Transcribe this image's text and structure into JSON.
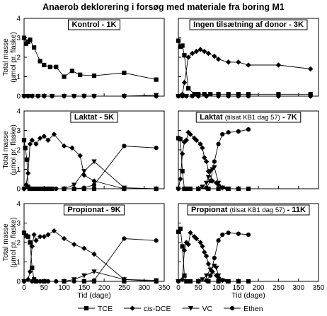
{
  "figure": {
    "title": "Anaerob deklorering i forsøg med materiale fra boring M1",
    "ylabel_line1": "Total masse",
    "ylabel_line2": "(µmol pr. flaske)",
    "xlabel": "Tid (dage)",
    "legend": [
      {
        "key": "TCE",
        "label": "TCE",
        "marker": "square"
      },
      {
        "key": "DCE",
        "label_prefix": "cis",
        "label": "-DCE",
        "marker": "diamond"
      },
      {
        "key": "VC",
        "label": "VC",
        "marker": "triangle-down"
      },
      {
        "key": "Ethen",
        "label": "Ethen",
        "marker": "circle"
      }
    ]
  },
  "chart_data": [
    {
      "type": "line",
      "title": "Kontrol - 1K",
      "xlim": [
        0,
        350
      ],
      "ylim": [
        0,
        4
      ],
      "xticks": [
        0,
        50,
        100,
        150,
        200,
        250,
        300,
        350
      ],
      "yticks": [
        0,
        1,
        2,
        3,
        4
      ],
      "series": [
        {
          "name": "TCE",
          "marker": "square",
          "x": [
            0,
            5,
            10,
            15,
            25,
            40,
            50,
            65,
            80,
            100,
            120,
            140,
            175,
            250,
            330
          ],
          "y": [
            3.0,
            2.7,
            2.8,
            2.9,
            2.5,
            1.8,
            1.6,
            1.5,
            1.5,
            1.0,
            1.3,
            1.1,
            1.05,
            1.2,
            0.85
          ]
        },
        {
          "name": "cis-DCE",
          "marker": "diamond",
          "x": [
            0,
            10,
            20,
            35,
            50,
            70,
            100,
            125,
            150,
            175,
            250,
            330
          ],
          "y": [
            0,
            0,
            0,
            0,
            0,
            0,
            0,
            0,
            0,
            0,
            0,
            0
          ]
        },
        {
          "name": "VC",
          "marker": "triangle-down",
          "x": [
            0,
            10,
            20,
            35,
            50,
            70,
            100,
            125,
            150,
            175,
            250,
            330
          ],
          "y": [
            0,
            0,
            0,
            0,
            0,
            0,
            0,
            0,
            0,
            0,
            0,
            0.05
          ]
        },
        {
          "name": "Ethen",
          "marker": "circle",
          "x": [
            0,
            10,
            20,
            35,
            50,
            70,
            100,
            125,
            150,
            175,
            250,
            330
          ],
          "y": [
            0,
            0,
            0,
            0,
            0,
            0,
            0,
            0,
            0,
            0,
            0,
            0
          ]
        }
      ]
    },
    {
      "type": "line",
      "title": "Ingen tilsætning af donor - 3K",
      "xlim": [
        0,
        350
      ],
      "ylim": [
        0,
        4
      ],
      "xticks": [
        0,
        50,
        100,
        150,
        200,
        250,
        300,
        350
      ],
      "yticks": [
        0,
        1,
        2,
        3,
        4
      ],
      "series": [
        {
          "name": "TCE",
          "marker": "square",
          "x": [
            0,
            5,
            10,
            15,
            25,
            40,
            50,
            65,
            80,
            100,
            125,
            150,
            175,
            250,
            330
          ],
          "y": [
            2.85,
            2.55,
            2.6,
            2.1,
            0.4,
            0.1,
            0.1,
            0.1,
            0.1,
            0.1,
            0.1,
            0.1,
            0.1,
            0.1,
            0.1
          ]
        },
        {
          "name": "cis-DCE",
          "marker": "diamond",
          "x": [
            0,
            10,
            15,
            25,
            35,
            45,
            55,
            65,
            75,
            90,
            100,
            125,
            150,
            175,
            250,
            330
          ],
          "y": [
            0,
            0.1,
            0.7,
            2.0,
            2.2,
            2.3,
            2.4,
            2.3,
            2.2,
            2.05,
            1.9,
            1.75,
            1.75,
            1.6,
            1.6,
            1.4
          ]
        },
        {
          "name": "VC",
          "marker": "triangle-down",
          "x": [
            0,
            10,
            20,
            35,
            50,
            70,
            100,
            125,
            150,
            175,
            250,
            330
          ],
          "y": [
            0,
            0,
            0,
            0,
            0,
            0,
            0,
            0,
            0,
            0,
            0,
            0
          ]
        },
        {
          "name": "Ethen",
          "marker": "circle",
          "x": [
            0,
            10,
            20,
            35,
            50,
            70,
            100,
            125,
            150,
            175,
            250,
            330
          ],
          "y": [
            0,
            0,
            0,
            0,
            0,
            0,
            0,
            0,
            0,
            0,
            0,
            0
          ]
        }
      ]
    },
    {
      "type": "line",
      "title": "Laktat - 5K",
      "xlim": [
        0,
        350
      ],
      "ylim": [
        0,
        4
      ],
      "xticks": [
        0,
        50,
        100,
        150,
        200,
        250,
        300,
        350
      ],
      "yticks": [
        0,
        1,
        2,
        3,
        4
      ],
      "series": [
        {
          "name": "TCE",
          "marker": "square",
          "x": [
            0,
            3,
            7,
            10,
            14,
            20,
            30,
            40,
            50,
            60,
            70,
            100,
            125,
            150,
            175,
            250,
            330
          ],
          "y": [
            2.5,
            2.1,
            1.5,
            0.1,
            0,
            0,
            0,
            0,
            0,
            0,
            0,
            0,
            0,
            0,
            0,
            0,
            0
          ]
        },
        {
          "name": "cis-DCE",
          "marker": "diamond",
          "x": [
            0,
            5,
            10,
            15,
            20,
            30,
            40,
            50,
            60,
            75,
            100,
            120,
            140,
            150,
            175,
            250,
            330
          ],
          "y": [
            0,
            0.2,
            0.8,
            2.3,
            2.5,
            2.3,
            2.6,
            2.7,
            2.5,
            2.8,
            2.2,
            2.1,
            1.7,
            0.7,
            0.4,
            0,
            0
          ]
        },
        {
          "name": "VC",
          "marker": "triangle-down",
          "x": [
            0,
            50,
            100,
            125,
            150,
            175,
            250,
            330
          ],
          "y": [
            0,
            0,
            0,
            0.2,
            0.9,
            1.4,
            0.05,
            0
          ]
        },
        {
          "name": "Ethen",
          "marker": "circle",
          "x": [
            0,
            20,
            40,
            60,
            80,
            100,
            125,
            150,
            175,
            250,
            330
          ],
          "y": [
            0,
            0,
            0,
            0,
            0,
            0,
            0,
            0.05,
            0.2,
            2.2,
            2.1
          ]
        }
      ]
    },
    {
      "type": "line",
      "title": "Laktat (tilsat KB1 dag 57) - 7K",
      "xlim": [
        0,
        350
      ],
      "ylim": [
        0,
        4
      ],
      "xticks": [
        0,
        50,
        100,
        150,
        200,
        250,
        300,
        350
      ],
      "yticks": [
        0,
        1,
        2,
        3,
        4
      ],
      "series": [
        {
          "name": "TCE",
          "marker": "square",
          "x": [
            0,
            5,
            10,
            15,
            20,
            30,
            50,
            75,
            100,
            125,
            150,
            175
          ],
          "y": [
            2.6,
            2.55,
            0.9,
            0,
            0,
            0,
            0,
            0,
            0,
            0,
            0,
            0
          ]
        },
        {
          "name": "cis-DCE",
          "marker": "diamond",
          "x": [
            0,
            5,
            10,
            15,
            20,
            25,
            30,
            40,
            45,
            55,
            60,
            65,
            70,
            75,
            85,
            95,
            100,
            110
          ],
          "y": [
            0,
            0.5,
            1.8,
            2.4,
            2.5,
            2.9,
            2.8,
            2.6,
            2.5,
            2.3,
            2.1,
            1.6,
            1.4,
            0.9,
            0.4,
            0.3,
            0.2,
            0.05
          ]
        },
        {
          "name": "VC",
          "marker": "triangle-down",
          "x": [
            0,
            50,
            60,
            70,
            75,
            80,
            85,
            90,
            100,
            110,
            120
          ],
          "y": [
            0,
            0,
            0.1,
            0.3,
            0.6,
            0.9,
            1.0,
            1.1,
            0.3,
            0.05,
            0
          ]
        },
        {
          "name": "Ethen",
          "marker": "circle",
          "x": [
            0,
            50,
            70,
            80,
            90,
            100,
            110,
            125,
            150,
            175
          ],
          "y": [
            0,
            0,
            0.05,
            0.4,
            1.4,
            2.3,
            2.8,
            2.9,
            2.95,
            3.05
          ]
        }
      ]
    },
    {
      "type": "line",
      "title": "Propionat - 9K",
      "xlim": [
        0,
        350
      ],
      "ylim": [
        0,
        4
      ],
      "xticks": [
        0,
        50,
        100,
        150,
        200,
        250,
        300,
        350
      ],
      "yticks": [
        0,
        1,
        2,
        3,
        4
      ],
      "series": [
        {
          "name": "TCE",
          "marker": "square",
          "x": [
            0,
            5,
            10,
            15,
            20,
            25,
            30,
            50,
            100,
            150,
            175,
            250,
            330
          ],
          "y": [
            2.5,
            2.35,
            2.3,
            2.0,
            0.7,
            0.1,
            0,
            0,
            0,
            0,
            0,
            0,
            0
          ]
        },
        {
          "name": "cis-DCE",
          "marker": "diamond",
          "x": [
            0,
            10,
            15,
            20,
            25,
            30,
            40,
            50,
            60,
            75,
            100,
            125,
            150,
            175,
            250,
            330
          ],
          "y": [
            0,
            0.1,
            0.5,
            1.8,
            2.4,
            2.1,
            2.3,
            2.3,
            2.4,
            2.6,
            2.2,
            1.9,
            1.7,
            1.4,
            0.1,
            0
          ]
        },
        {
          "name": "VC",
          "marker": "triangle-down",
          "x": [
            0,
            50,
            100,
            125,
            150,
            175,
            250,
            330
          ],
          "y": [
            0,
            0,
            0,
            0.1,
            0.3,
            0.5,
            0.1,
            0.05
          ]
        },
        {
          "name": "Ethen",
          "marker": "circle",
          "x": [
            0,
            20,
            40,
            60,
            80,
            100,
            125,
            150,
            175,
            250,
            330
          ],
          "y": [
            0,
            0,
            0,
            0,
            0,
            0,
            0,
            0,
            0.05,
            2.2,
            2.1
          ]
        }
      ]
    },
    {
      "type": "line",
      "title": "Propionat (tilsat KB1 dag 57) - 11K",
      "xlim": [
        0,
        350
      ],
      "ylim": [
        0,
        4
      ],
      "xticks": [
        0,
        50,
        100,
        150,
        200,
        250,
        300,
        350
      ],
      "yticks": [
        0,
        1,
        2,
        3,
        4
      ],
      "series": [
        {
          "name": "TCE",
          "marker": "square",
          "x": [
            0,
            5,
            10,
            15,
            20,
            30,
            50,
            75,
            100,
            125,
            150,
            175
          ],
          "y": [
            2.55,
            2.7,
            1.8,
            0.3,
            0,
            0,
            0,
            0,
            0,
            0,
            0,
            0
          ]
        },
        {
          "name": "cis-DCE",
          "marker": "diamond",
          "x": [
            0,
            10,
            15,
            20,
            25,
            30,
            40,
            45,
            55,
            60,
            65,
            70,
            75,
            85,
            95,
            100,
            110
          ],
          "y": [
            0,
            0.1,
            1.6,
            2.0,
            1.9,
            2.5,
            2.3,
            2.2,
            2.0,
            1.8,
            1.5,
            1.3,
            0.9,
            0.5,
            0.3,
            0.2,
            0.05
          ]
        },
        {
          "name": "VC",
          "marker": "triangle-down",
          "x": [
            0,
            50,
            60,
            70,
            80,
            90,
            95,
            100,
            110,
            120
          ],
          "y": [
            0,
            0,
            0.1,
            0.3,
            0.6,
            0.8,
            0.7,
            0.3,
            0.05,
            0
          ]
        },
        {
          "name": "Ethen",
          "marker": "circle",
          "x": [
            0,
            50,
            70,
            80,
            90,
            100,
            110,
            125,
            150,
            175
          ],
          "y": [
            0,
            0,
            0.05,
            0.3,
            1.2,
            2.1,
            2.4,
            2.5,
            2.45,
            2.4
          ]
        }
      ]
    }
  ]
}
